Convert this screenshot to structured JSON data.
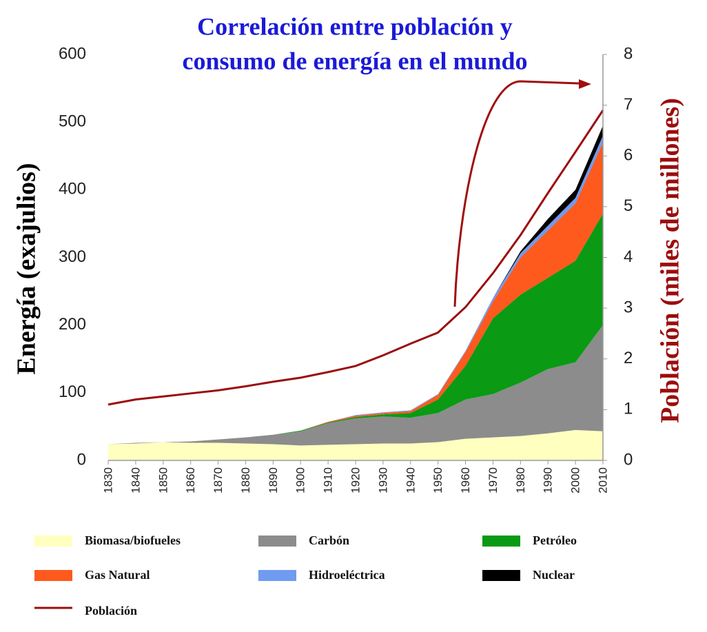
{
  "chart_data": {
    "type": "stacked-area",
    "title": [
      "Correlación entre población y",
      "consumo de energía en el mundo"
    ],
    "y_label": "Energía (exajulios)",
    "y2_label": "Población (miles de millones)",
    "x": [
      1830,
      1840,
      1850,
      1860,
      1870,
      1880,
      1890,
      1900,
      1910,
      1920,
      1930,
      1940,
      1950,
      1960,
      1970,
      1980,
      1990,
      2000,
      2010
    ],
    "xlim": [
      1830,
      2010
    ],
    "xticks": [
      1830,
      1840,
      1850,
      1860,
      1870,
      1880,
      1890,
      1900,
      1910,
      1920,
      1930,
      1940,
      1950,
      1960,
      1970,
      1980,
      1990,
      2000,
      2010
    ],
    "ylim": [
      0,
      600
    ],
    "yticks": [
      0,
      100,
      200,
      300,
      400,
      500,
      600
    ],
    "y2lim": [
      0,
      8
    ],
    "y2ticks": [
      0,
      1,
      2,
      3,
      4,
      5,
      6,
      7,
      8
    ],
    "series": [
      {
        "name": "Biomasa/biofueles",
        "color": "#ffffc0",
        "values": [
          24,
          25,
          27,
          26,
          26,
          25,
          24,
          22,
          23,
          24,
          25,
          25,
          27,
          32,
          34,
          36,
          40,
          45,
          43
        ]
      },
      {
        "name": "Carbón",
        "color": "#8c8c8c",
        "values": [
          0,
          1,
          0,
          2,
          5,
          9,
          14,
          21,
          32,
          38,
          40,
          38,
          43,
          58,
          64,
          79,
          95,
          100,
          157
        ]
      },
      {
        "name": "Petróleo",
        "color": "#0a9a14",
        "values": [
          0,
          0,
          0,
          0,
          0,
          0,
          0,
          1,
          1,
          2,
          3,
          7,
          20,
          50,
          112,
          130,
          135,
          150,
          165
        ]
      },
      {
        "name": "Gas Natural",
        "color": "#ff5a1e",
        "values": [
          0,
          0,
          0,
          0,
          0,
          0,
          0,
          0,
          1,
          2,
          2,
          3,
          7,
          20,
          25,
          55,
          70,
          85,
          105
        ]
      },
      {
        "name": "Hidroeléctrica",
        "color": "#6f9bf0",
        "values": [
          0,
          0,
          0,
          0,
          0,
          0,
          0,
          0,
          0,
          1,
          1,
          1,
          1,
          2,
          5,
          6,
          7,
          8,
          10
        ]
      },
      {
        "name": "Nuclear",
        "color": "#000000",
        "values": [
          0,
          0,
          0,
          0,
          0,
          0,
          0,
          0,
          0,
          0,
          0,
          0,
          0,
          0,
          0,
          3,
          10,
          12,
          15
        ]
      },
      {
        "name": "Población",
        "color": "#9b0d0d",
        "axis": "y2",
        "values": [
          1.1,
          1.2,
          1.26,
          1.32,
          1.38,
          1.46,
          1.55,
          1.63,
          1.74,
          1.86,
          2.07,
          2.3,
          2.52,
          3.02,
          3.69,
          4.44,
          5.27,
          6.08,
          6.9
        ]
      }
    ]
  }
}
